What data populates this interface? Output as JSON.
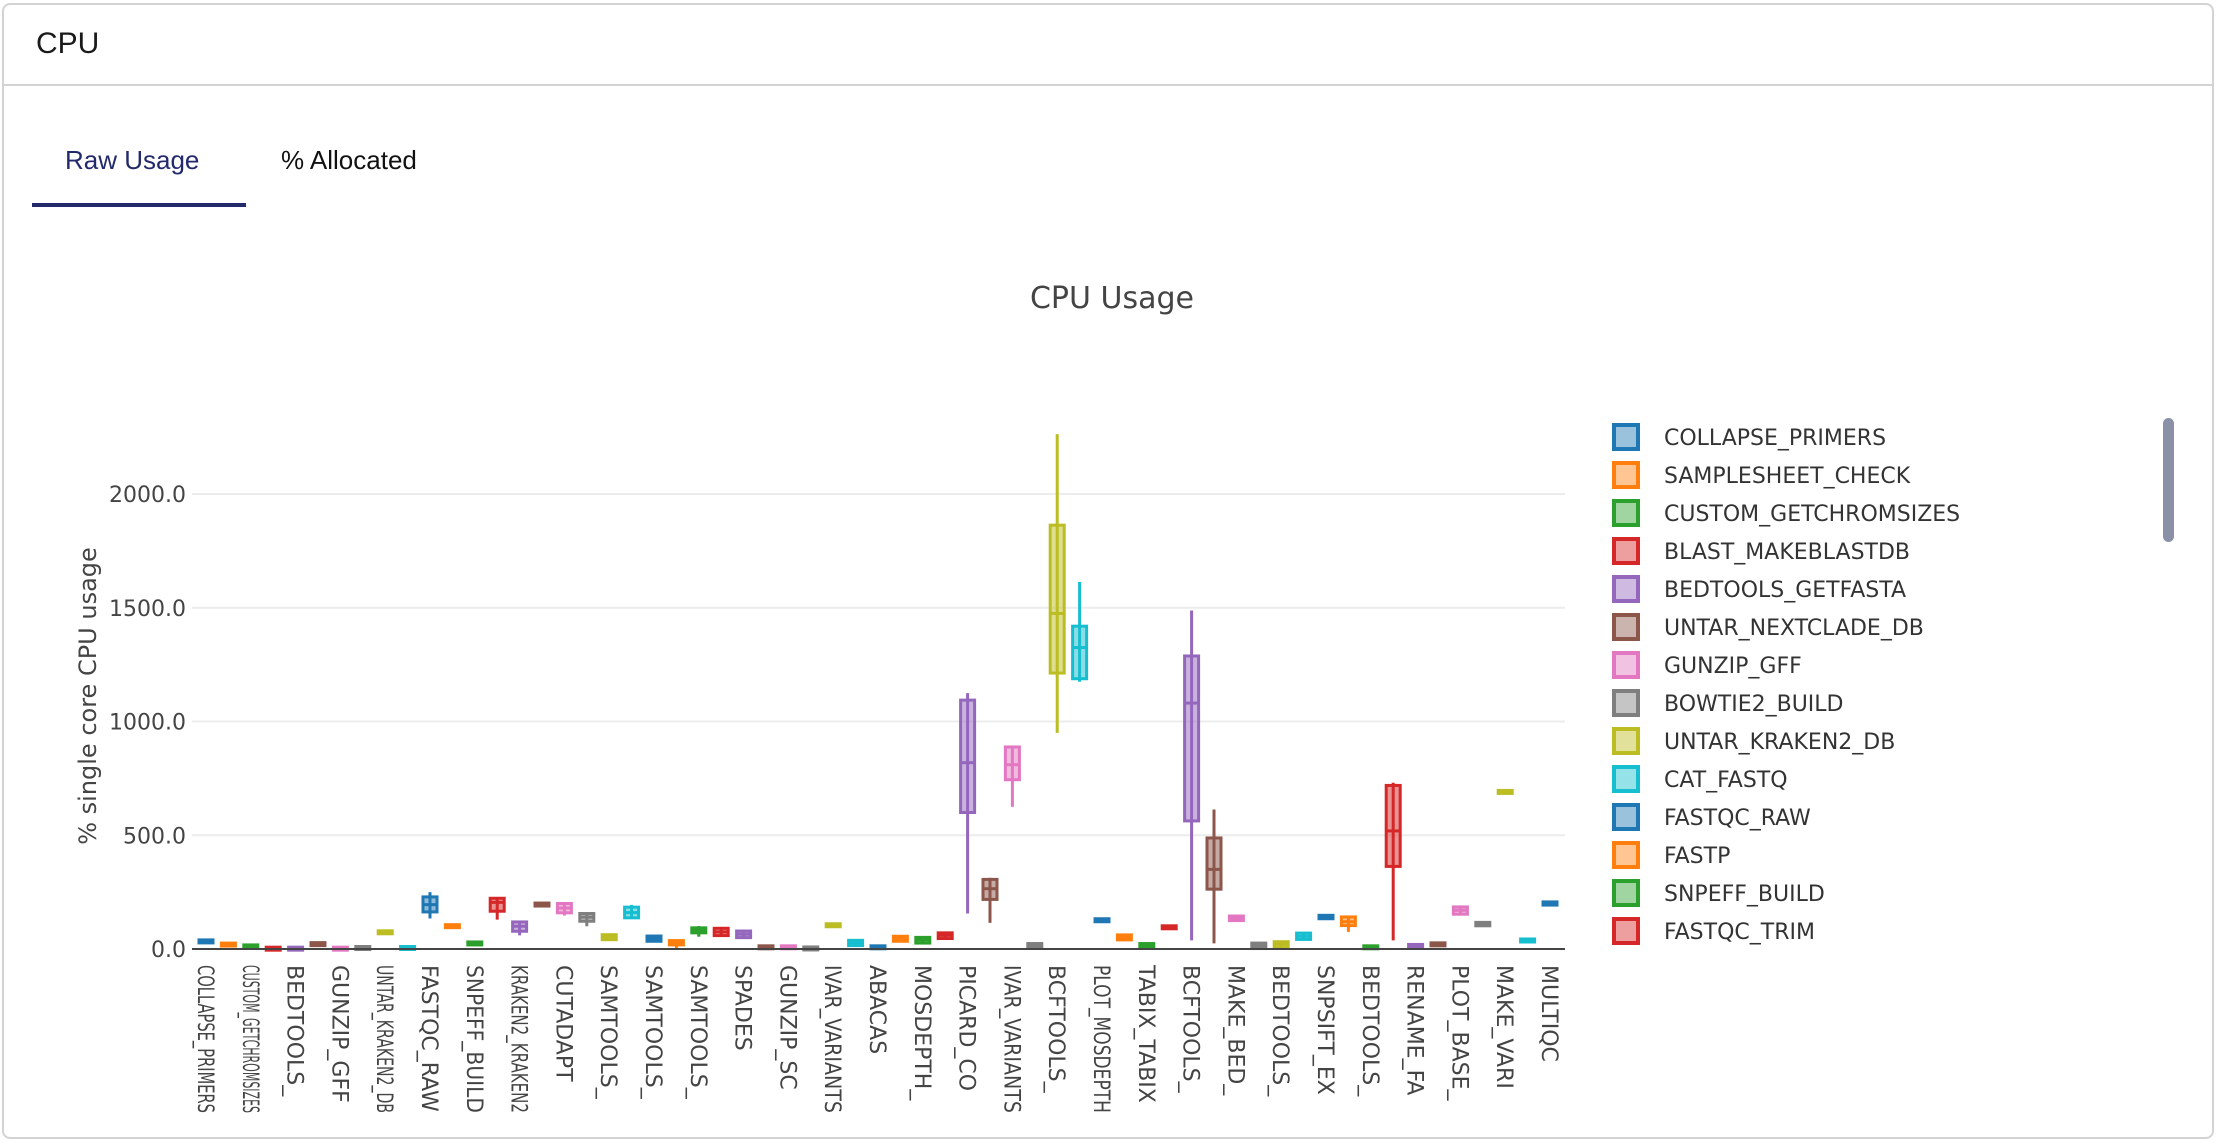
{
  "panel": {
    "title": "CPU"
  },
  "tabs": [
    {
      "label": "Raw Usage",
      "active": true
    },
    {
      "label": "% Allocated",
      "active": false
    }
  ],
  "palette": [
    "#1f77b4",
    "#ff7f0e",
    "#2ca02c",
    "#d62728",
    "#9467bd",
    "#8c564b",
    "#e377c2",
    "#7f7f7f",
    "#bcbd22",
    "#17becf"
  ],
  "chart_data": {
    "type": "box",
    "title": "CPU Usage",
    "ylabel": "% single core CPU usage",
    "xlabel": "",
    "ylim": [
      0,
      2370
    ],
    "yticks": [
      0,
      500,
      1000,
      1500,
      2000
    ],
    "ytick_labels": [
      "0.0",
      "500.0",
      "1000.0",
      "1500.0",
      "2000.0"
    ],
    "grid": true,
    "legend_position": "right",
    "tick_labels": [
      "COLLAPSE_PRIMERS",
      "CUSTOM_GETCHROMSIZES",
      "BEDTOOLS_",
      "GUNZIP_GFF",
      "UNTAR_KRAKEN2_DB",
      "FASTQC_RAW",
      "SNPEFF_BUILD",
      "KRAKEN2_KRAKEN2",
      "CUTADAPT",
      "SAMTOOLS_",
      "SAMTOOLS_",
      "SAMTOOLS_",
      "SPADES",
      "GUNZIP_SC",
      "IVAR_VARIANTS",
      "ABACAS",
      "MOSDEPTH_",
      "PICARD_CO",
      "IVAR_VARIANTS",
      "BCFTOOLS_",
      "PLOT_MOSDEPTH",
      "TABIX_TABIX",
      "BCFTOOLS_",
      "MAKE_BED_",
      "BEDTOOLS_",
      "SNPSIFT_EX",
      "BEDTOOLS_",
      "RENAME_FA",
      "PLOT_BASE_",
      "MAKE_VARI",
      "MULTIQC"
    ],
    "legend": [
      "COLLAPSE_PRIMERS",
      "SAMPLESHEET_CHECK",
      "CUSTOM_GETCHROMSIZES",
      "BLAST_MAKEBLASTDB",
      "BEDTOOLS_GETFASTA",
      "UNTAR_NEXTCLADE_DB",
      "GUNZIP_GFF",
      "BOWTIE2_BUILD",
      "UNTAR_KRAKEN2_DB",
      "CAT_FASTQ",
      "FASTQC_RAW",
      "FASTP",
      "SNPEFF_BUILD",
      "FASTQC_TRIM"
    ],
    "boxes_min_q1_median_q3_max": [
      [
        36,
        36,
        38,
        40,
        40
      ],
      [
        22,
        22,
        24,
        26,
        26
      ],
      [
        14,
        14,
        16,
        18,
        18
      ],
      [
        4,
        4,
        6,
        8,
        8
      ],
      [
        4,
        4,
        6,
        8,
        8
      ],
      [
        24,
        24,
        26,
        28,
        28
      ],
      [
        4,
        4,
        6,
        8,
        8
      ],
      [
        6,
        7,
        9,
        11,
        12
      ],
      [
        76,
        76,
        78,
        80,
        80
      ],
      [
        6,
        7,
        9,
        11,
        12
      ],
      [
        134,
        163,
        195,
        229,
        250
      ],
      [
        100,
        101,
        104,
        107,
        108
      ],
      [
        26,
        27,
        29,
        31,
        32
      ],
      [
        129,
        166,
        205,
        223,
        223
      ],
      [
        60,
        78,
        100,
        119,
        119
      ],
      [
        197,
        198,
        200,
        202,
        203
      ],
      [
        147,
        159,
        180,
        200,
        206
      ],
      [
        100,
        122,
        140,
        156,
        162
      ],
      [
        38,
        41,
        52,
        63,
        66
      ],
      [
        132,
        137,
        160,
        184,
        194
      ],
      [
        34,
        34,
        46,
        57,
        57
      ],
      [
        2,
        18,
        28,
        37,
        37
      ],
      [
        54,
        71,
        82,
        93,
        101
      ],
      [
        53,
        59,
        75,
        91,
        97
      ],
      [
        46,
        50,
        65,
        79,
        85
      ],
      [
        0,
        2,
        8,
        14,
        16
      ],
      [
        0,
        2,
        8,
        14,
        16
      ],
      [
        0,
        1,
        5,
        9,
        10
      ],
      [
        107,
        107,
        109,
        111,
        111
      ],
      [
        9,
        15,
        28,
        38,
        44
      ],
      [
        2,
        4,
        10,
        14,
        16
      ],
      [
        32,
        34,
        45,
        56,
        58
      ],
      [
        22,
        26,
        40,
        51,
        54
      ],
      [
        42,
        46,
        60,
        71,
        76
      ],
      [
        156,
        600,
        819,
        1094,
        1125
      ],
      [
        115,
        218,
        265,
        306,
        313
      ],
      [
        625,
        744,
        810,
        888,
        894
      ],
      [
        2,
        5,
        15,
        24,
        26
      ],
      [
        950,
        1213,
        1475,
        1863,
        2263
      ],
      [
        1175,
        1188,
        1325,
        1419,
        1613
      ],
      [
        119,
        120,
        126,
        133,
        134
      ],
      [
        37,
        40,
        51,
        62,
        65
      ],
      [
        3,
        5,
        14,
        24,
        30
      ],
      [
        90,
        92,
        97,
        102,
        104
      ],
      [
        38,
        563,
        1081,
        1288,
        1488
      ],
      [
        25,
        263,
        350,
        488,
        613
      ],
      [
        122,
        125,
        135,
        145,
        147
      ],
      [
        0,
        2,
        14,
        26,
        29
      ],
      [
        4,
        6,
        20,
        32,
        34
      ],
      [
        38,
        42,
        56,
        70,
        73
      ],
      [
        132,
        133,
        140,
        148,
        150
      ],
      [
        75,
        103,
        120,
        141,
        141
      ],
      [
        0,
        2,
        8,
        14,
        16
      ],
      [
        38,
        363,
        519,
        719,
        731
      ],
      [
        4,
        6,
        12,
        20,
        22
      ],
      [
        12,
        14,
        20,
        27,
        29
      ],
      [
        151,
        153,
        170,
        185,
        188
      ],
      [
        100,
        102,
        110,
        117,
        119
      ],
      [
        690,
        691,
        694,
        697,
        698
      ],
      [
        29,
        31,
        38,
        44,
        46
      ],
      [
        191,
        193,
        200,
        207,
        209
      ]
    ]
  }
}
